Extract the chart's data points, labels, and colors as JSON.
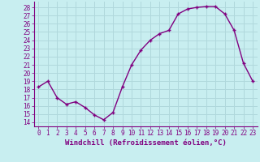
{
  "x": [
    0,
    1,
    2,
    3,
    4,
    5,
    6,
    7,
    8,
    9,
    10,
    11,
    12,
    13,
    14,
    15,
    16,
    17,
    18,
    19,
    20,
    21,
    22,
    23
  ],
  "y": [
    18.3,
    19.0,
    17.0,
    16.2,
    16.5,
    15.8,
    14.9,
    14.3,
    15.2,
    18.3,
    21.0,
    22.8,
    24.0,
    24.8,
    25.2,
    27.2,
    27.8,
    28.0,
    28.1,
    28.1,
    27.2,
    25.2,
    21.2,
    19.0
  ],
  "line_color": "#800080",
  "marker": "+",
  "bg_color": "#C8EEF0",
  "grid_color": "#B0D8DC",
  "xlabel": "Windchill (Refroidissement éolien,°C)",
  "xlim": [
    -0.5,
    23.5
  ],
  "ylim": [
    13.5,
    28.7
  ],
  "yticks": [
    14,
    15,
    16,
    17,
    18,
    19,
    20,
    21,
    22,
    23,
    24,
    25,
    26,
    27,
    28
  ],
  "xticks": [
    0,
    1,
    2,
    3,
    4,
    5,
    6,
    7,
    8,
    9,
    10,
    11,
    12,
    13,
    14,
    15,
    16,
    17,
    18,
    19,
    20,
    21,
    22,
    23
  ],
  "tick_fontsize": 5.5,
  "xlabel_fontsize": 6.5,
  "line_width": 1.0,
  "marker_size": 3.5
}
